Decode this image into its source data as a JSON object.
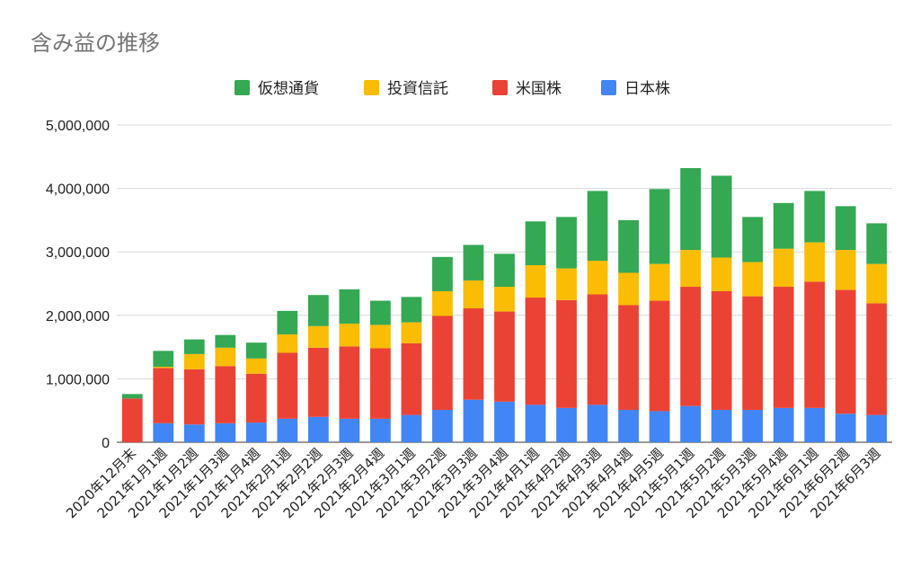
{
  "chart_data": {
    "type": "bar",
    "stacked": true,
    "title": "含み益の推移",
    "categories": [
      "2020年12月末",
      "2021年1月1週",
      "2021年1月2週",
      "2021年1月3週",
      "2021年1月4週",
      "2021年2月1週",
      "2021年2月2週",
      "2021年2月3週",
      "2021年2月4週",
      "2021年3月1週",
      "2021年3月2週",
      "2021年3月3週",
      "2021年3月4週",
      "2021年4月1週",
      "2021年4月2週",
      "2021年4月3週",
      "2021年4月4週",
      "2021年4月5週",
      "2021年5月1週",
      "2021年5月2週",
      "2021年5月3週",
      "2021年5月4週",
      "2021年6月1週",
      "2021年6月2週",
      "2021年6月3週"
    ],
    "series": [
      {
        "name": "日本株",
        "color": "#4285f4",
        "values": [
          0,
          300000,
          280000,
          300000,
          310000,
          370000,
          400000,
          370000,
          370000,
          430000,
          510000,
          670000,
          640000,
          590000,
          540000,
          590000,
          510000,
          490000,
          570000,
          510000,
          510000,
          540000,
          540000,
          450000,
          430000
        ]
      },
      {
        "name": "米国株",
        "color": "#ea4335",
        "values": [
          690000,
          870000,
          870000,
          900000,
          770000,
          1040000,
          1090000,
          1140000,
          1110000,
          1130000,
          1480000,
          1440000,
          1420000,
          1690000,
          1700000,
          1740000,
          1650000,
          1740000,
          1880000,
          1870000,
          1790000,
          1910000,
          1990000,
          1950000,
          1760000
        ]
      },
      {
        "name": "投資信託",
        "color": "#fbbc04",
        "values": [
          0,
          20000,
          240000,
          290000,
          240000,
          290000,
          340000,
          360000,
          370000,
          330000,
          390000,
          440000,
          390000,
          510000,
          500000,
          530000,
          510000,
          580000,
          580000,
          530000,
          540000,
          600000,
          620000,
          630000,
          620000
        ]
      },
      {
        "name": "仮想通貨",
        "color": "#34a853",
        "values": [
          70000,
          250000,
          230000,
          200000,
          250000,
          370000,
          490000,
          540000,
          380000,
          400000,
          540000,
          560000,
          520000,
          690000,
          810000,
          1100000,
          830000,
          1180000,
          1290000,
          1290000,
          710000,
          720000,
          810000,
          690000,
          640000
        ]
      }
    ],
    "legend_order": [
      "仮想通貨",
      "投資信託",
      "米国株",
      "日本株"
    ],
    "legend_position": "top",
    "ylim": [
      0,
      5000000
    ],
    "yticks": [
      0,
      1000000,
      2000000,
      3000000,
      4000000,
      5000000
    ],
    "ytick_labels": [
      "0",
      "1,000,000",
      "2,000,000",
      "3,000,000",
      "4,000,000",
      "5,000,000"
    ],
    "grid": true,
    "xlabel": "",
    "ylabel": ""
  }
}
